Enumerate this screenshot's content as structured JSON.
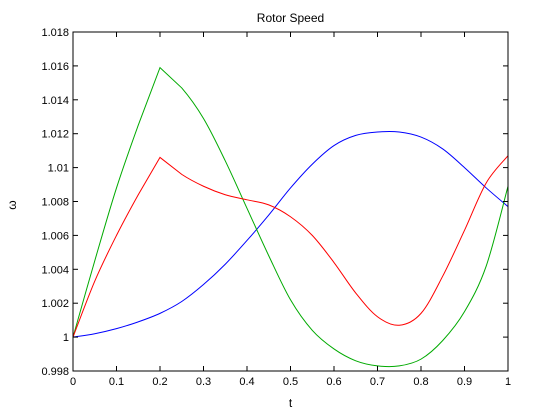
{
  "chart_data": {
    "type": "line",
    "title": "Rotor Speed",
    "xlabel": "t",
    "ylabel": "ω",
    "xlim": [
      0,
      1
    ],
    "ylim": [
      0.998,
      1.018
    ],
    "grid": false,
    "xticks": [
      "0",
      "0.1",
      "0.2",
      "0.3",
      "0.4",
      "0.5",
      "0.6",
      "0.7",
      "0.8",
      "0.9",
      "1"
    ],
    "yticks": [
      "0.998",
      "1",
      "1.002",
      "1.004",
      "1.006",
      "1.008",
      "1.01",
      "1.012",
      "1.014",
      "1.016",
      "1.018"
    ],
    "series": [
      {
        "color": "#0000ff",
        "x": [
          0,
          0.05,
          0.1,
          0.15,
          0.2,
          0.25,
          0.3,
          0.35,
          0.4,
          0.45,
          0.5,
          0.55,
          0.6,
          0.65,
          0.7,
          0.75,
          0.8,
          0.85,
          0.9,
          0.95,
          1.0
        ],
        "y": [
          1.0,
          1.0002,
          1.0005,
          1.0009,
          1.0014,
          1.0021,
          1.0031,
          1.0043,
          1.0057,
          1.0072,
          1.0088,
          1.0102,
          1.0113,
          1.0119,
          1.0121,
          1.0121,
          1.0118,
          1.0111,
          1.01,
          1.0088,
          1.0077
        ]
      },
      {
        "color": "#00aa00",
        "x": [
          0,
          0.05,
          0.1,
          0.15,
          0.2,
          0.25,
          0.3,
          0.35,
          0.4,
          0.45,
          0.5,
          0.55,
          0.6,
          0.65,
          0.7,
          0.75,
          0.8,
          0.85,
          0.9,
          0.95,
          1.0
        ],
        "y": [
          1.0,
          1.0045,
          1.0088,
          1.0125,
          1.0159,
          1.0147,
          1.0129,
          1.0104,
          1.0076,
          1.0048,
          1.0022,
          1.0004,
          0.9993,
          0.9986,
          0.9983,
          0.9983,
          0.9987,
          0.9998,
          1.0015,
          1.0042,
          1.0089
        ]
      },
      {
        "color": "#ff0000",
        "x": [
          0,
          0.05,
          0.1,
          0.15,
          0.2,
          0.25,
          0.3,
          0.35,
          0.4,
          0.45,
          0.5,
          0.55,
          0.6,
          0.65,
          0.7,
          0.75,
          0.8,
          0.85,
          0.9,
          0.95,
          1.0
        ],
        "y": [
          1.0,
          1.0033,
          1.006,
          1.0084,
          1.0106,
          1.0096,
          1.0089,
          1.0084,
          1.0081,
          1.0078,
          1.0071,
          1.006,
          1.0044,
          1.0026,
          1.0012,
          1.0007,
          1.0014,
          1.0036,
          1.0063,
          1.0091,
          1.0107
        ]
      }
    ]
  }
}
